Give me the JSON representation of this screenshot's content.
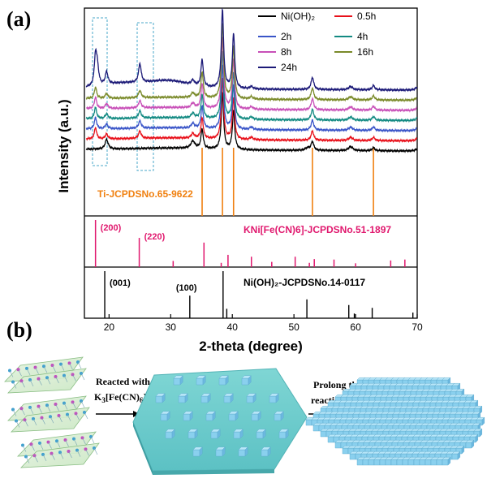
{
  "panel_a_label": "(a)",
  "panel_b_label": "(b)",
  "chart_data": {
    "type": "line",
    "xlabel": "2-theta (degree)",
    "ylabel": "Intensity (a.u.)",
    "xlim": [
      16,
      70
    ],
    "xticks": [
      20,
      30,
      40,
      50,
      60,
      70
    ],
    "series": [
      {
        "name": "Ni(OH)₂",
        "color": "#000000",
        "offset": 0,
        "shift": 0,
        "features": "ni"
      },
      {
        "name": "0.5h",
        "color": "#e8101a",
        "offset": 1,
        "shift": 1,
        "features": "kni"
      },
      {
        "name": "2h",
        "color": "#3a55c8",
        "offset": 2,
        "shift": 2,
        "features": "kni"
      },
      {
        "name": "4h",
        "color": "#138a82",
        "offset": 3,
        "shift": 3,
        "features": "kni"
      },
      {
        "name": "8h",
        "color": "#c850b8",
        "offset": 4,
        "shift": 4,
        "features": "kni"
      },
      {
        "name": "16h",
        "color": "#7a8a2a",
        "offset": 5,
        "shift": 5,
        "features": "kni"
      },
      {
        "name": "24h",
        "color": "#1c1a78",
        "offset": 6,
        "shift": 6,
        "features": "kni24"
      }
    ],
    "references": [
      {
        "name": "Ti-JCPDSNo.65-9622",
        "color": "#f08010",
        "peaks": [
          {
            "x": 35.1,
            "h": 1.0
          },
          {
            "x": 38.4,
            "h": 1.0
          },
          {
            "x": 40.2,
            "h": 1.0
          },
          {
            "x": 53.0,
            "h": 1.0
          },
          {
            "x": 62.9,
            "h": 1.0
          }
        ]
      },
      {
        "name": "KNi[Fe(CN)6]-JCPDSNo.51-1897",
        "color": "#e0186e",
        "hkl": [
          {
            "text": "(200)",
            "x": 17.8
          },
          {
            "text": "(220)",
            "x": 24.9
          }
        ],
        "peaks": [
          {
            "x": 17.8,
            "h": 1.0
          },
          {
            "x": 24.9,
            "h": 0.62
          },
          {
            "x": 30.4,
            "h": 0.13
          },
          {
            "x": 35.4,
            "h": 0.52
          },
          {
            "x": 38.2,
            "h": 0.09
          },
          {
            "x": 39.3,
            "h": 0.26
          },
          {
            "x": 43.1,
            "h": 0.22
          },
          {
            "x": 46.4,
            "h": 0.11
          },
          {
            "x": 50.2,
            "h": 0.22
          },
          {
            "x": 52.5,
            "h": 0.09
          },
          {
            "x": 53.3,
            "h": 0.17
          },
          {
            "x": 56.5,
            "h": 0.16
          },
          {
            "x": 60.0,
            "h": 0.08
          },
          {
            "x": 65.7,
            "h": 0.14
          },
          {
            "x": 68.0,
            "h": 0.16
          }
        ]
      },
      {
        "name": "Ni(OH)₂-JCPDSNo.14-0117",
        "color": "#000000",
        "hkl": [
          {
            "text": "(001)",
            "x": 19.3
          },
          {
            "text": "(100)",
            "x": 33.1
          }
        ],
        "peaks": [
          {
            "x": 19.3,
            "h": 1.0
          },
          {
            "x": 33.1,
            "h": 0.48
          },
          {
            "x": 38.5,
            "h": 1.0
          },
          {
            "x": 39.1,
            "h": 0.2
          },
          {
            "x": 52.1,
            "h": 0.4
          },
          {
            "x": 58.9,
            "h": 0.28
          },
          {
            "x": 59.8,
            "h": 0.1
          },
          {
            "x": 62.7,
            "h": 0.22
          },
          {
            "x": 69.3,
            "h": 0.12
          }
        ]
      }
    ]
  },
  "scheme": {
    "step1_line1": "Reacted with",
    "step1_line2_prefix": "K",
    "step1_sub1": "3",
    "step1_line2_mid": "[Fe(CN)",
    "step1_sub2": "6",
    "step1_line2_suffix": "]",
    "step2_line1": "Prolong the",
    "step2_line2": "reaction time"
  }
}
